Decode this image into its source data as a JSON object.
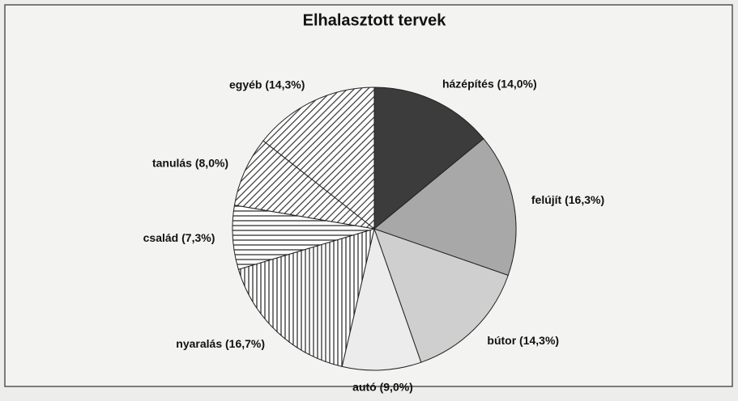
{
  "chart_data": {
    "type": "pie",
    "title": "Elhalasztott tervek",
    "categories": [
      "házépítés (14,0%)",
      "felújít (16,3%)",
      "bútor (14,3%)",
      "autó (9,0%)",
      "nyaralás (16,7%)",
      "család (7,3%)",
      "tanulás (8,0%)",
      "egyéb (14,3%)"
    ],
    "values": [
      14.0,
      16.3,
      14.3,
      9.0,
      16.7,
      7.3,
      8.0,
      14.3
    ],
    "colors": [
      "#3c3c3c",
      "#a8a8a8",
      "#cfcfcf",
      "#ececec",
      "#ffffff",
      "#ffffff",
      "#ffffff",
      "#ffffff"
    ],
    "hatch": [
      null,
      null,
      null,
      null,
      "vertical",
      "horizontal",
      "diagonal",
      "diagonal"
    ]
  }
}
